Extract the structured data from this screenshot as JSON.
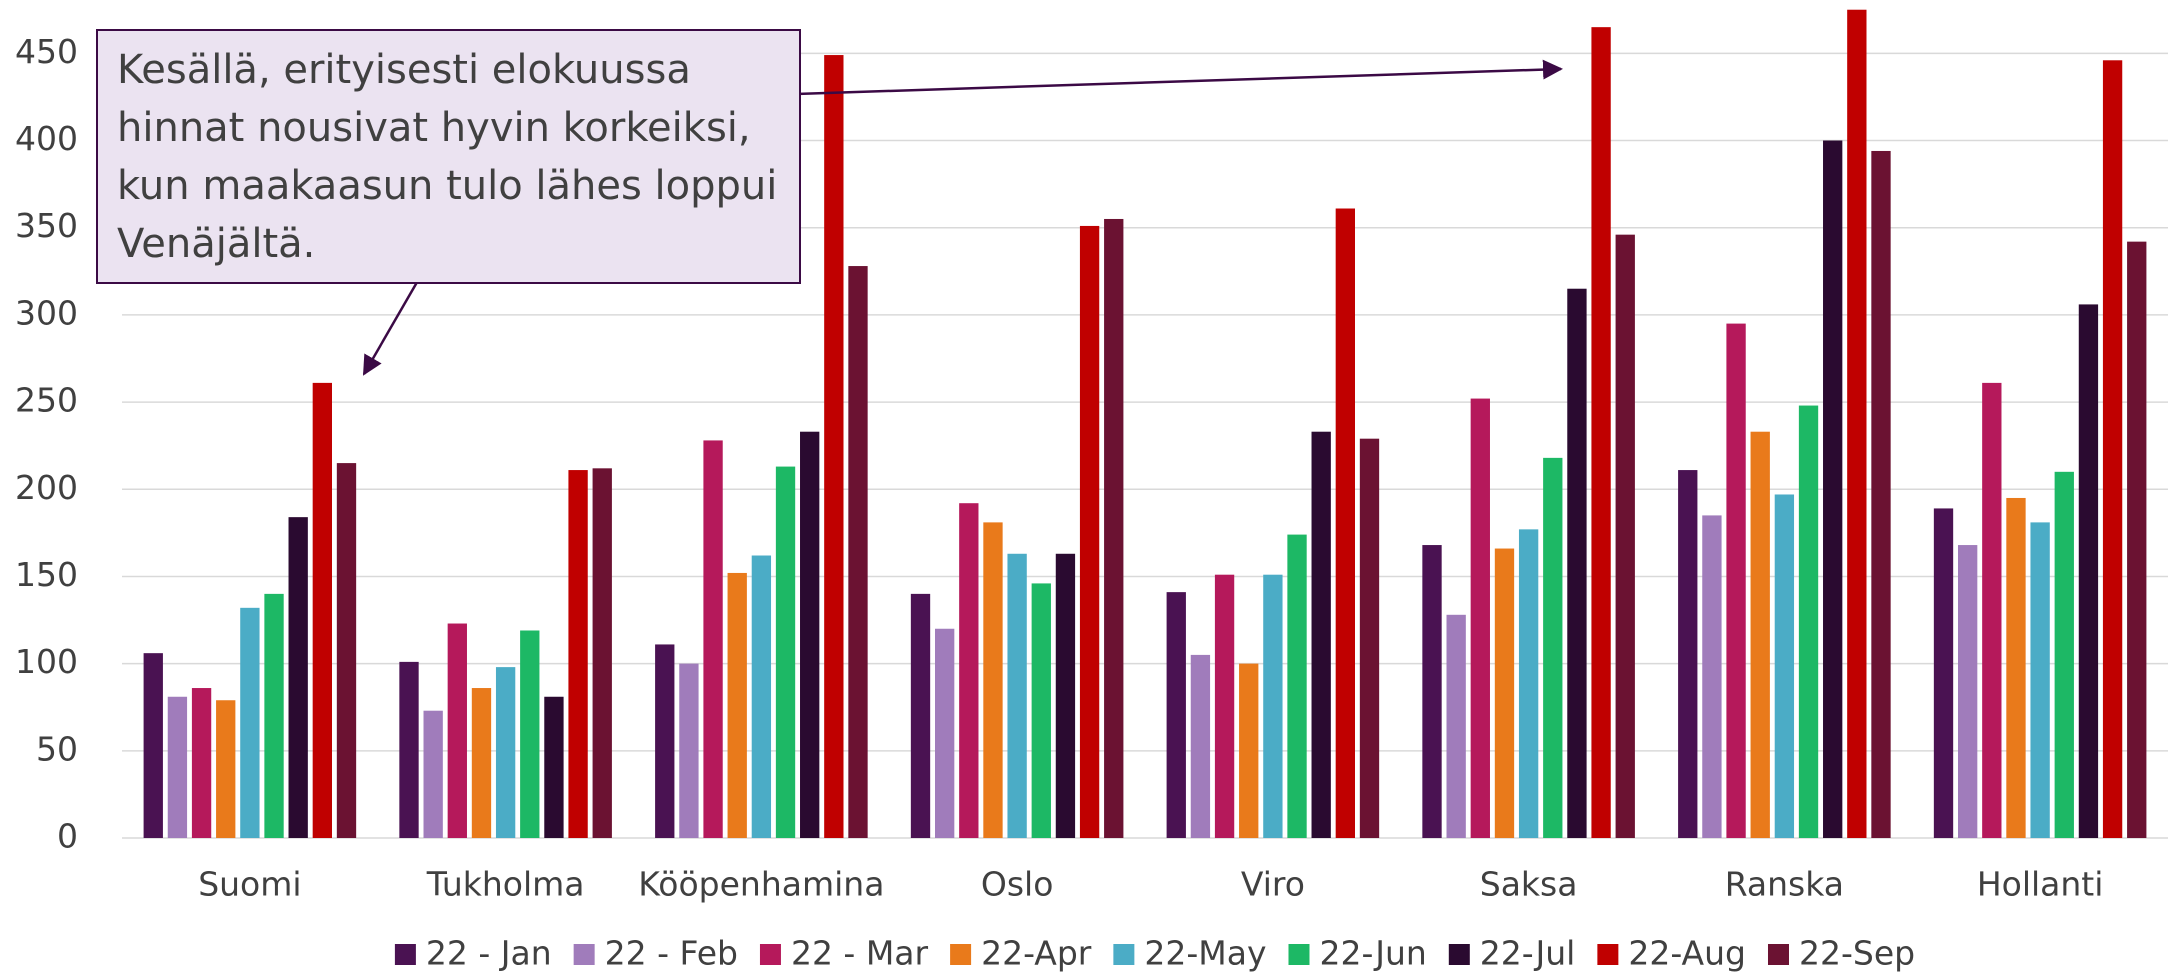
{
  "chart_data": {
    "type": "bar",
    "categories": [
      "Suomi",
      "Tukholma",
      "Kööpenhamina",
      "Oslo",
      "Viro",
      "Saksa",
      "Ranska",
      "Hollanti"
    ],
    "series": [
      {
        "name": "22 - Jan",
        "color": "#4a1252",
        "values": [
          106,
          101,
          111,
          140,
          141,
          168,
          211,
          189
        ]
      },
      {
        "name": "22 - Feb",
        "color": "#a07cbb",
        "values": [
          81,
          73,
          100,
          120,
          105,
          128,
          185,
          168
        ]
      },
      {
        "name": "22 - Mar",
        "color": "#b5195b",
        "values": [
          86,
          123,
          228,
          192,
          151,
          252,
          295,
          261
        ]
      },
      {
        "name": "22-Apr",
        "color": "#e97a1b",
        "values": [
          79,
          86,
          152,
          181,
          100,
          166,
          233,
          195
        ]
      },
      {
        "name": "22-May",
        "color": "#4bacc6",
        "values": [
          132,
          98,
          162,
          163,
          151,
          177,
          197,
          181
        ]
      },
      {
        "name": "22-Jun",
        "color": "#1db865",
        "values": [
          140,
          119,
          213,
          146,
          174,
          218,
          248,
          210
        ]
      },
      {
        "name": "22-Jul",
        "color": "#2a0a30",
        "values": [
          184,
          81,
          233,
          163,
          233,
          315,
          400,
          306
        ]
      },
      {
        "name": "22-Aug",
        "color": "#c00000",
        "values": [
          261,
          211,
          449,
          351,
          361,
          465,
          475,
          446
        ]
      },
      {
        "name": "22-Sep",
        "color": "#6b1232",
        "values": [
          215,
          212,
          328,
          355,
          229,
          346,
          394,
          342
        ]
      }
    ],
    "ylim": [
      0,
      480
    ],
    "yticks": [
      0,
      50,
      100,
      150,
      200,
      250,
      300,
      350,
      400,
      450
    ],
    "grid": true,
    "legend": "bottom",
    "annotation": [
      "Kesällä, erityisesti elokuussa",
      "hinnat nousivat hyvin korkeiksi,",
      "kun maakaasun tulo lähes loppui",
      "Venäjältä."
    ]
  }
}
